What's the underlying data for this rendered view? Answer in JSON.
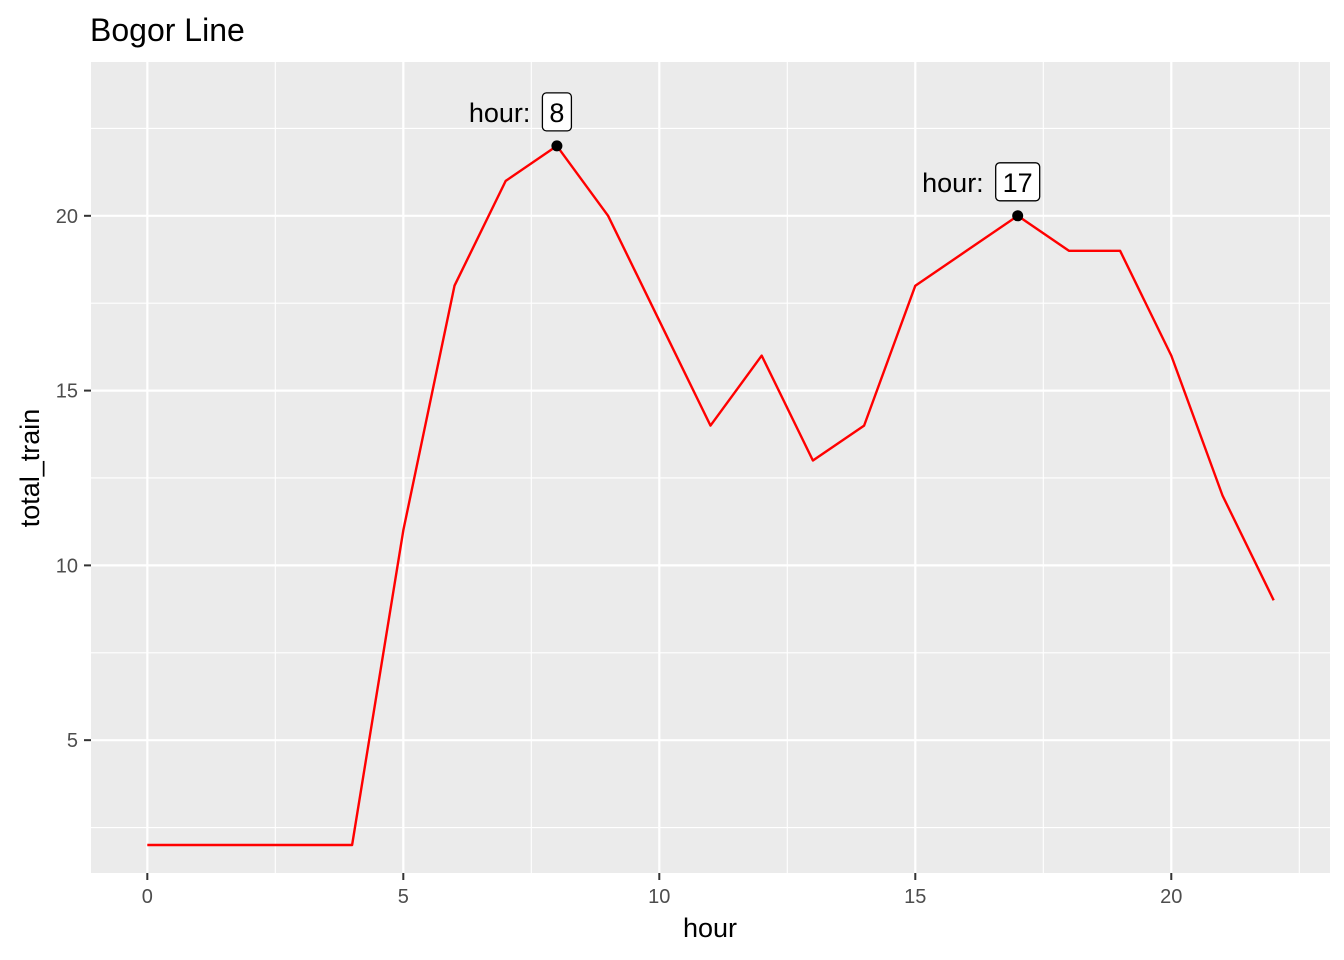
{
  "chart_data": {
    "type": "line",
    "title": "Bogor Line",
    "xlabel": "hour",
    "ylabel": "total_train",
    "xlim": [
      -1.1,
      23.1
    ],
    "ylim": [
      1.2,
      24.4
    ],
    "x_ticks": [
      0,
      5,
      10,
      15,
      20
    ],
    "x_tick_labels": [
      "0",
      "5",
      "10",
      "15",
      "20"
    ],
    "y_ticks": [
      5,
      10,
      15,
      20
    ],
    "y_tick_labels": [
      "5",
      "10",
      "15",
      "20"
    ],
    "grid": true,
    "series": [
      {
        "color": "#ff0000",
        "x": [
          0,
          1,
          2,
          3,
          4,
          5,
          6,
          7,
          8,
          9,
          10,
          11,
          12,
          13,
          14,
          15,
          16,
          17,
          18,
          19,
          20,
          21,
          22
        ],
        "y": [
          2,
          2,
          2,
          2,
          2,
          11,
          18,
          21,
          22,
          20,
          17,
          14,
          16,
          13,
          14,
          18,
          19,
          20,
          19,
          19,
          16,
          12,
          9
        ]
      }
    ],
    "annotations": [
      {
        "x": 8,
        "y": 22,
        "prefix": "hour:",
        "label": "8"
      },
      {
        "x": 17,
        "y": 20,
        "prefix": "hour:",
        "label": "17"
      }
    ],
    "colors": {
      "panel_background": "#ebebeb",
      "grid": "#ffffff",
      "point": "#000000"
    }
  }
}
